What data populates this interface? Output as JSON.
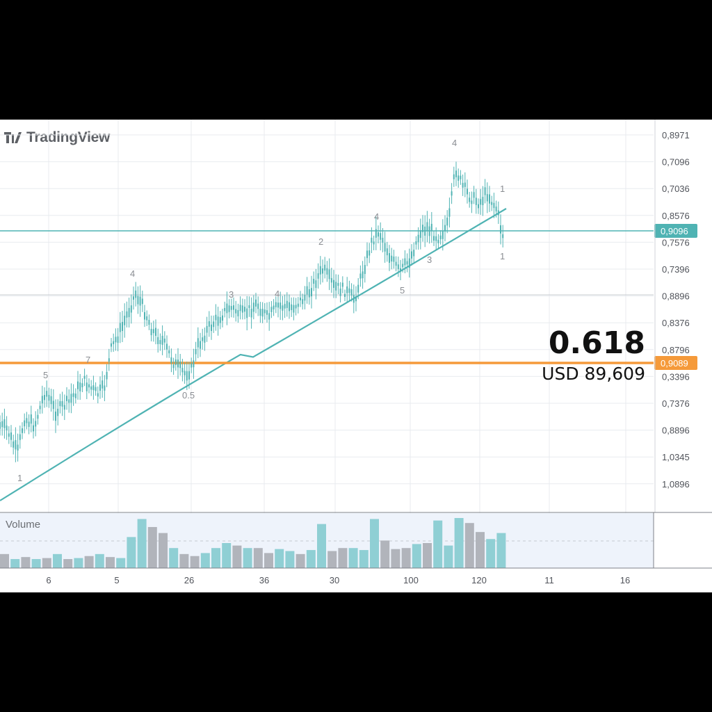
{
  "brand": {
    "name": "TradingView",
    "logo_icon": "tradingview-logo-icon"
  },
  "chart_data": {
    "type": "candlestick",
    "y_axis_labels": [
      "0,8971",
      "0,7096",
      "0,7036",
      "0,8576",
      "0,7576",
      "0,7396",
      "0,8896",
      "0,8376",
      "0,8796",
      "0,3396",
      "0,7376",
      "0,8896",
      "1,0345",
      "1,0896"
    ],
    "x_axis_labels": [
      "6",
      "5",
      "26",
      "36",
      "30",
      "100",
      "120",
      "11",
      "16"
    ],
    "horizontal_levels": [
      {
        "label": "0,9096",
        "color": "#4fb3b3",
        "value_frac": 0.26
      },
      {
        "label": "0,9089",
        "color": "#f59a3a",
        "value_frac": 0.545
      }
    ],
    "fib_annotation": {
      "ratio": "0.618",
      "price": "USD 89,609"
    },
    "wave_labels": [
      "1",
      "5",
      "7",
      "4",
      "0.5",
      "3",
      "4",
      "2",
      "4",
      "5",
      "3",
      "4",
      "1",
      "1"
    ],
    "price_path": [
      0.92,
      0.87,
      0.8,
      0.72,
      0.7,
      0.68,
      0.64,
      0.62,
      0.66,
      0.64,
      0.6,
      0.56,
      0.5,
      0.47,
      0.44,
      0.4,
      0.36,
      0.33,
      0.3,
      0.32,
      0.34,
      0.3,
      0.28,
      0.27,
      0.25,
      0.24,
      0.23,
      0.21,
      0.2,
      0.22,
      0.21,
      0.19,
      0.17,
      0.15,
      0.12,
      0.1,
      0.07
    ],
    "trend_line": {
      "from": 0.92,
      "to": 0.07
    },
    "volume": [
      {
        "v": 0.28,
        "c": "gray"
      },
      {
        "v": 0.18,
        "c": "teal"
      },
      {
        "v": 0.22,
        "c": "gray"
      },
      {
        "v": 0.18,
        "c": "teal"
      },
      {
        "v": 0.2,
        "c": "gray"
      },
      {
        "v": 0.28,
        "c": "teal"
      },
      {
        "v": 0.18,
        "c": "gray"
      },
      {
        "v": 0.2,
        "c": "teal"
      },
      {
        "v": 0.24,
        "c": "gray"
      },
      {
        "v": 0.28,
        "c": "teal"
      },
      {
        "v": 0.22,
        "c": "gray"
      },
      {
        "v": 0.2,
        "c": "teal"
      },
      {
        "v": 0.62,
        "c": "teal"
      },
      {
        "v": 0.98,
        "c": "teal"
      },
      {
        "v": 0.82,
        "c": "gray"
      },
      {
        "v": 0.7,
        "c": "gray"
      },
      {
        "v": 0.4,
        "c": "teal"
      },
      {
        "v": 0.28,
        "c": "gray"
      },
      {
        "v": 0.24,
        "c": "gray"
      },
      {
        "v": 0.3,
        "c": "teal"
      },
      {
        "v": 0.4,
        "c": "teal"
      },
      {
        "v": 0.5,
        "c": "teal"
      },
      {
        "v": 0.45,
        "c": "gray"
      },
      {
        "v": 0.4,
        "c": "teal"
      },
      {
        "v": 0.4,
        "c": "gray"
      },
      {
        "v": 0.3,
        "c": "gray"
      },
      {
        "v": 0.38,
        "c": "teal"
      },
      {
        "v": 0.34,
        "c": "teal"
      },
      {
        "v": 0.28,
        "c": "gray"
      },
      {
        "v": 0.36,
        "c": "teal"
      },
      {
        "v": 0.88,
        "c": "teal"
      },
      {
        "v": 0.34,
        "c": "gray"
      },
      {
        "v": 0.4,
        "c": "gray"
      },
      {
        "v": 0.4,
        "c": "teal"
      },
      {
        "v": 0.36,
        "c": "teal"
      },
      {
        "v": 0.98,
        "c": "teal"
      },
      {
        "v": 0.55,
        "c": "gray"
      },
      {
        "v": 0.38,
        "c": "gray"
      },
      {
        "v": 0.4,
        "c": "gray"
      },
      {
        "v": 0.48,
        "c": "teal"
      },
      {
        "v": 0.5,
        "c": "gray"
      },
      {
        "v": 0.95,
        "c": "teal"
      },
      {
        "v": 0.45,
        "c": "teal"
      },
      {
        "v": 1.0,
        "c": "teal"
      },
      {
        "v": 0.9,
        "c": "gray"
      },
      {
        "v": 0.72,
        "c": "gray"
      },
      {
        "v": 0.58,
        "c": "teal"
      },
      {
        "v": 0.7,
        "c": "teal"
      }
    ]
  },
  "volume": {
    "label": "Volume"
  },
  "colors": {
    "teal": "#4fb3b3",
    "orange": "#f59a3a",
    "gray": "#a9adb4",
    "grid": "#e8ebef"
  }
}
